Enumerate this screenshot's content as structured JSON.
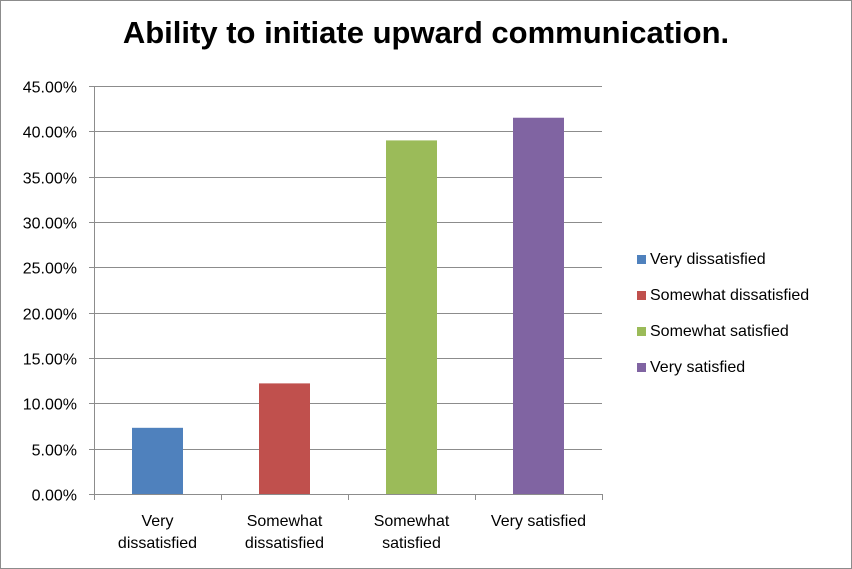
{
  "chart_data": {
    "type": "bar",
    "title": "Ability to initiate upward communication.",
    "categories": [
      "Very dissatisfied",
      "Somewhat dissatisfied",
      "Somewhat satisfied",
      "Very satisfied"
    ],
    "category_tick_lines": [
      [
        "Very",
        "dissatisfied"
      ],
      [
        "Somewhat",
        "dissatisfied"
      ],
      [
        "Somewhat",
        "satisfied"
      ],
      [
        "Very satisfied"
      ]
    ],
    "values": [
      7.3,
      12.2,
      39.0,
      41.5
    ],
    "value_unit": "percent",
    "colors": [
      "#4f81bd",
      "#c0504d",
      "#9bbb59",
      "#8064a2"
    ],
    "ylim": [
      0,
      45
    ],
    "ytick_values": [
      0,
      5,
      10,
      15,
      20,
      25,
      30,
      35,
      40,
      45
    ],
    "ytick_labels": [
      "0.00%",
      "5.00%",
      "10.00%",
      "15.00%",
      "20.00%",
      "25.00%",
      "30.00%",
      "35.00%",
      "40.00%",
      "45.00%"
    ],
    "grid": true,
    "legend": {
      "placement": "right",
      "entries": [
        "Very dissatisfied",
        "Somewhat dissatisfied",
        "Somewhat satisfied",
        "Very satisfied"
      ]
    },
    "xlabel": "",
    "ylabel": ""
  }
}
